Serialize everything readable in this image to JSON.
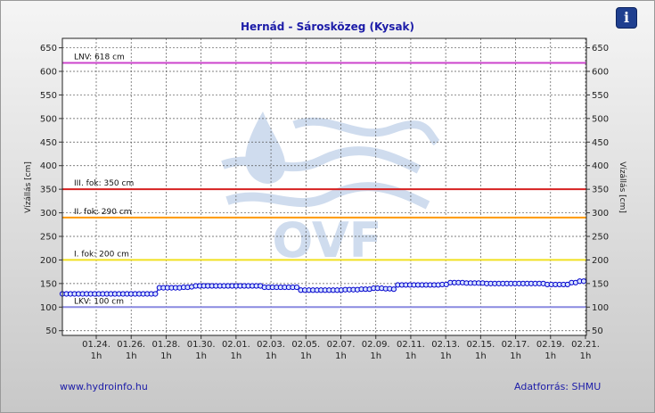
{
  "page": {
    "title": "Hernád - Sárosközeg (Kysak)",
    "info_icon": "i",
    "website": "www.hydroinfo.hu",
    "source": "Adatforrás: SHMU"
  },
  "colors": {
    "title": "#1c1ca8",
    "series": "#0000cc",
    "series_fill": "#d8e4ff",
    "lnv": "#cc44cc",
    "fok3": "#d62020",
    "fok2": "#ff9900",
    "fok1": "#f0e020",
    "lkv": "#8a8ae0",
    "watermark": "#cfdcee"
  },
  "watermark": {
    "text": "OVF"
  },
  "chart_data": {
    "type": "line",
    "title": "Hernád - Sárosközeg (Kysak)",
    "ylabel": "Vízállás [cm]",
    "ylabel_right": "Vízállás [cm]",
    "ylim": [
      40,
      670
    ],
    "yticks": [
      50,
      100,
      150,
      200,
      250,
      300,
      350,
      400,
      450,
      500,
      550,
      600,
      650
    ],
    "grid": true,
    "x_ticks": [
      {
        "date": "01.24.",
        "hour": "1h"
      },
      {
        "date": "01.26.",
        "hour": "1h"
      },
      {
        "date": "01.28.",
        "hour": "1h"
      },
      {
        "date": "01.30.",
        "hour": "1h"
      },
      {
        "date": "02.01.",
        "hour": "1h"
      },
      {
        "date": "02.03.",
        "hour": "1h"
      },
      {
        "date": "02.05.",
        "hour": "1h"
      },
      {
        "date": "02.07.",
        "hour": "1h"
      },
      {
        "date": "02.09.",
        "hour": "1h"
      },
      {
        "date": "02.11.",
        "hour": "1h"
      },
      {
        "date": "02.13.",
        "hour": "1h"
      },
      {
        "date": "02.15.",
        "hour": "1h"
      },
      {
        "date": "02.17.",
        "hour": "1h"
      },
      {
        "date": "02.19.",
        "hour": "1h"
      },
      {
        "date": "02.21.",
        "hour": "1h"
      }
    ],
    "reference_lines": [
      {
        "label": "LNV: 618 cm",
        "value": 618,
        "color": "#cc44cc"
      },
      {
        "label": "III. fok: 350 cm",
        "value": 350,
        "color": "#d62020"
      },
      {
        "label": "II. fok: 290 cm",
        "value": 290,
        "color": "#ff9900"
      },
      {
        "label": "I. fok: 200 cm",
        "value": 200,
        "color": "#f0e020"
      },
      {
        "label": "LKV: 100 cm",
        "value": 100,
        "color": "#8a8ae0"
      }
    ],
    "series": [
      {
        "x_start": "01.22. 1h",
        "x_end": "02.21. 1h",
        "values": [
          128,
          128,
          128,
          128,
          128,
          128,
          128,
          128,
          128,
          128,
          128,
          128,
          128,
          128,
          128,
          128,
          128,
          128,
          128,
          128,
          128,
          128,
          128,
          128,
          141,
          141,
          141,
          141,
          141,
          141,
          142,
          142,
          143,
          145,
          145,
          145,
          145,
          145,
          145,
          145,
          145,
          145,
          145,
          145,
          145,
          145,
          145,
          145,
          145,
          145,
          142,
          142,
          142,
          142,
          142,
          142,
          142,
          142,
          142,
          136,
          136,
          136,
          136,
          136,
          136,
          136,
          136,
          136,
          136,
          136,
          137,
          137,
          137,
          137,
          138,
          138,
          138,
          140,
          140,
          140,
          139,
          139,
          138,
          147,
          147,
          147,
          147,
          147,
          147,
          147,
          147,
          147,
          147,
          147,
          148,
          148,
          152,
          152,
          152,
          152,
          151,
          151,
          151,
          151,
          151,
          150,
          150,
          150,
          150,
          150,
          150,
          150,
          150,
          150,
          150,
          150,
          150,
          150,
          150,
          150,
          148,
          148,
          148,
          148,
          148,
          148,
          152,
          152,
          155,
          155
        ]
      }
    ]
  }
}
